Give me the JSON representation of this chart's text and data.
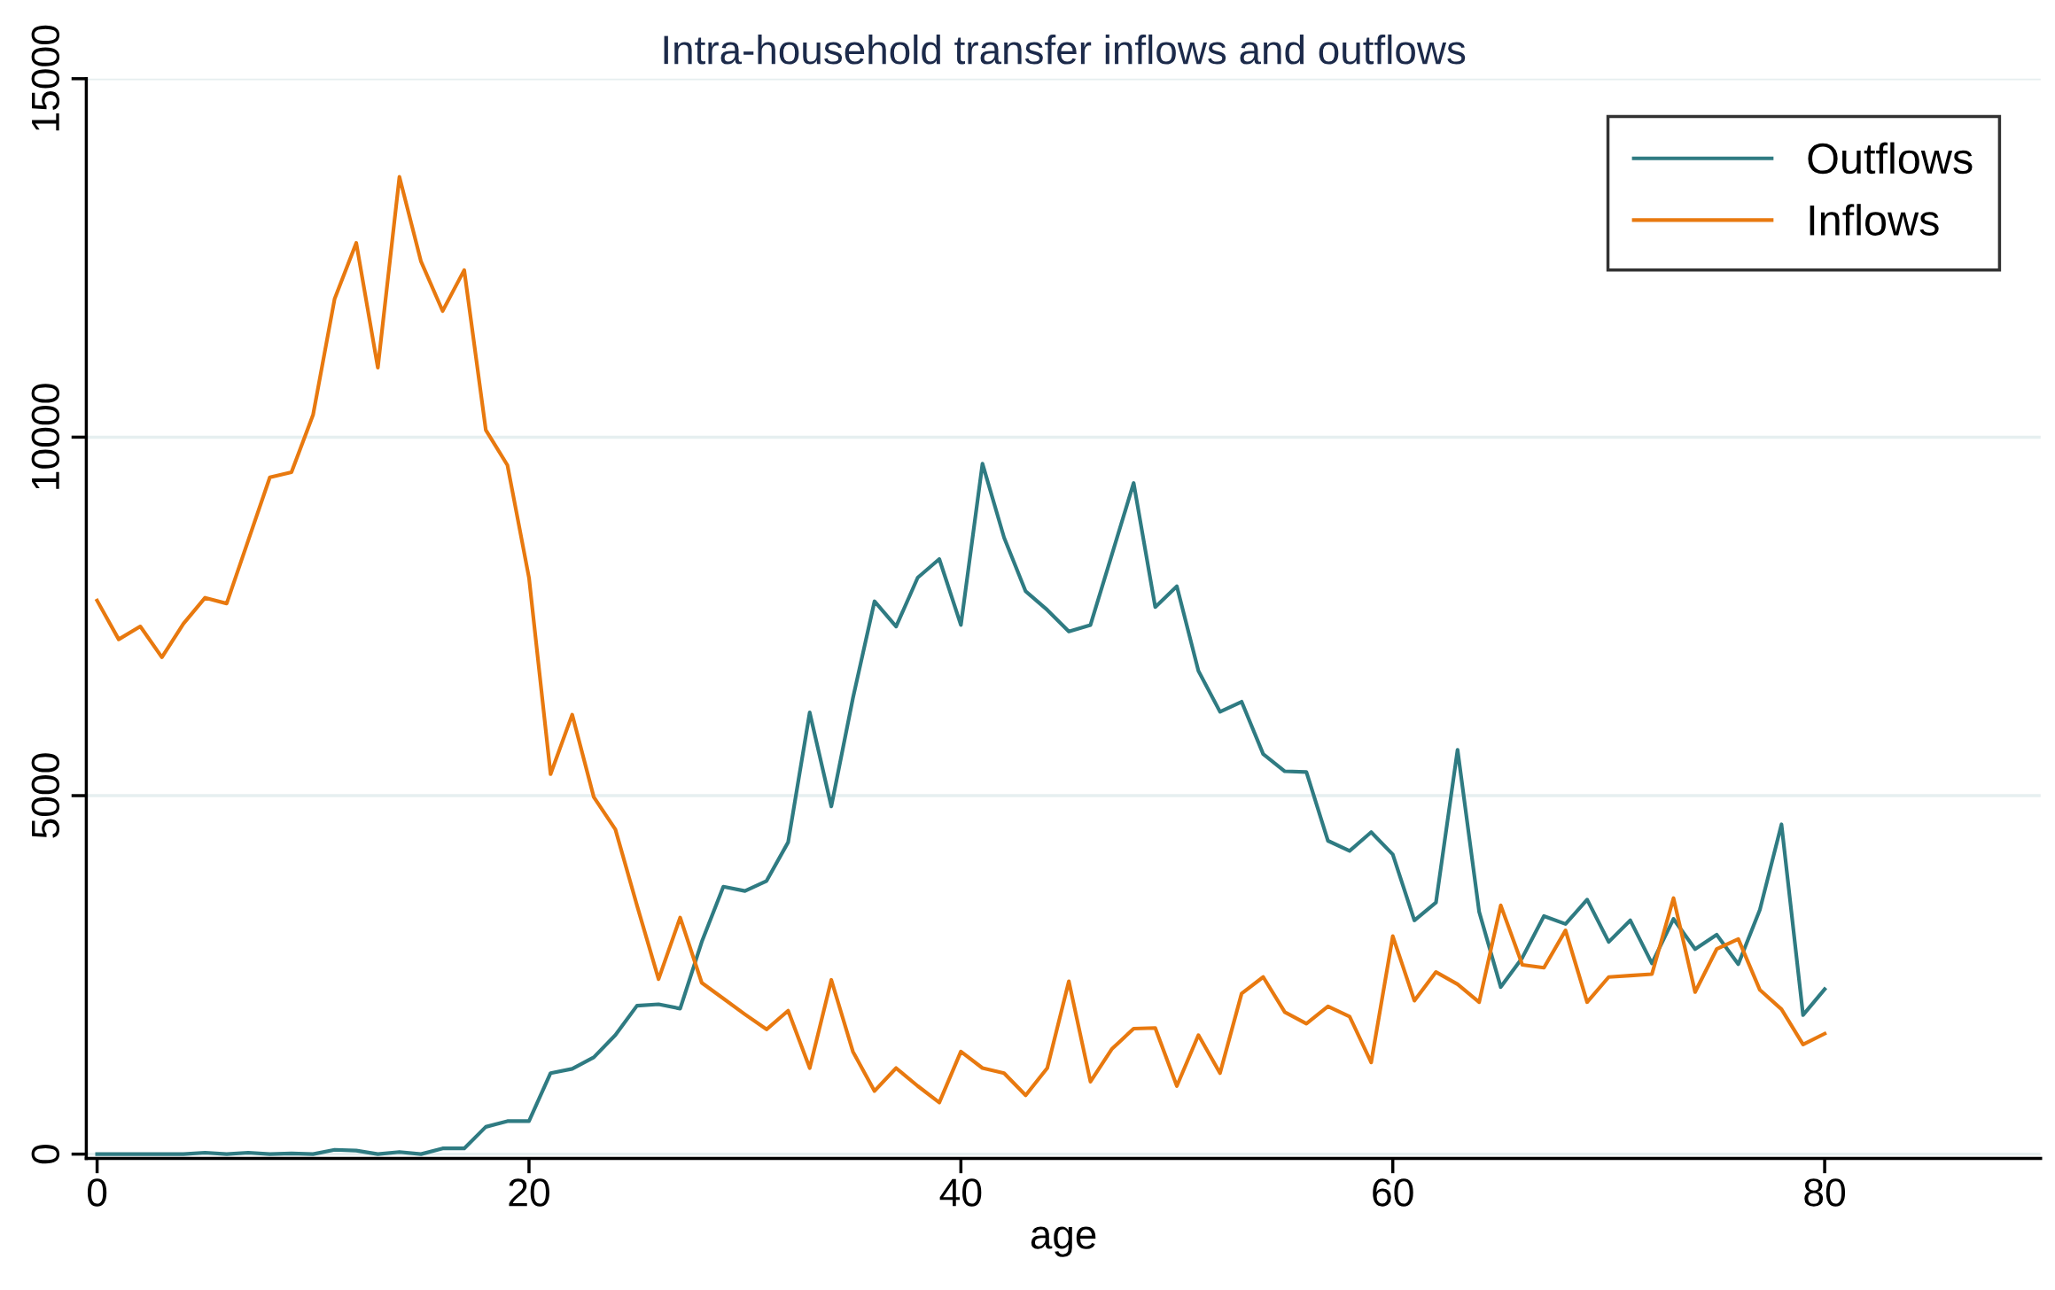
{
  "chart_data": {
    "type": "line",
    "title": "Intra-household transfer inflows and outflows",
    "xlabel": "age",
    "x": [
      0,
      1,
      2,
      3,
      4,
      5,
      6,
      7,
      8,
      9,
      10,
      11,
      12,
      13,
      14,
      15,
      16,
      17,
      18,
      19,
      20,
      21,
      22,
      23,
      24,
      25,
      26,
      27,
      28,
      29,
      30,
      31,
      32,
      33,
      34,
      35,
      36,
      37,
      38,
      39,
      40,
      41,
      42,
      43,
      44,
      45,
      46,
      47,
      48,
      49,
      50,
      51,
      52,
      53,
      54,
      55,
      56,
      57,
      58,
      59,
      60,
      61,
      62,
      63,
      64,
      65,
      66,
      67,
      68,
      69,
      70,
      71,
      72,
      73,
      74,
      75,
      76,
      77,
      78,
      79,
      80
    ],
    "series": [
      {
        "name": "Outflows",
        "color": "#2f7b82",
        "values": [
          0,
          0,
          0,
          0,
          0,
          20,
          0,
          20,
          0,
          10,
          0,
          60,
          50,
          0,
          30,
          0,
          80,
          80,
          380,
          460,
          460,
          1130,
          1190,
          1350,
          1660,
          2070,
          2090,
          2030,
          2960,
          3730,
          3670,
          3810,
          4350,
          6160,
          4850,
          6360,
          7710,
          7360,
          8040,
          8300,
          7380,
          9630,
          8600,
          7850,
          7590,
          7290,
          7380,
          8370,
          9360,
          7630,
          7920,
          6740,
          6170,
          6310,
          5580,
          5340,
          5330,
          4370,
          4230,
          4490,
          4180,
          3260,
          3510,
          5640,
          3380,
          2330,
          2740,
          3320,
          3210,
          3550,
          2960,
          3260,
          2660,
          3280,
          2860,
          3060,
          2650,
          3410,
          4600,
          1940,
          2300
        ]
      },
      {
        "name": "Inflows",
        "color": "#e8790f",
        "values": [
          7720,
          7180,
          7360,
          6930,
          7400,
          7760,
          7680,
          8560,
          9440,
          9510,
          10310,
          11930,
          12710,
          10970,
          13630,
          12450,
          11760,
          12330,
          10100,
          9610,
          8040,
          5300,
          6130,
          4980,
          4530,
          3470,
          2440,
          3300,
          2390,
          2170,
          1950,
          1740,
          2000,
          1200,
          2430,
          1430,
          880,
          1200,
          950,
          720,
          1430,
          1200,
          1130,
          820,
          1200,
          2410,
          1010,
          1470,
          1750,
          1760,
          950,
          1660,
          1130,
          2240,
          2470,
          1980,
          1820,
          2060,
          1920,
          1280,
          3040,
          2140,
          2540,
          2370,
          2120,
          3470,
          2640,
          2600,
          3120,
          2120,
          2470,
          2490,
          2510,
          3570,
          2260,
          2860,
          3000,
          2290,
          2020,
          1530,
          1680
        ]
      }
    ],
    "xlim": [
      -0.5,
      90
    ],
    "ylim": [
      -60,
      15000
    ],
    "xticks": [
      0,
      20,
      40,
      60,
      80
    ],
    "yticks": [
      0,
      5000,
      10000,
      15000
    ],
    "grid": "y",
    "legend": "top right",
    "line_style": "solid",
    "marker": "none"
  }
}
